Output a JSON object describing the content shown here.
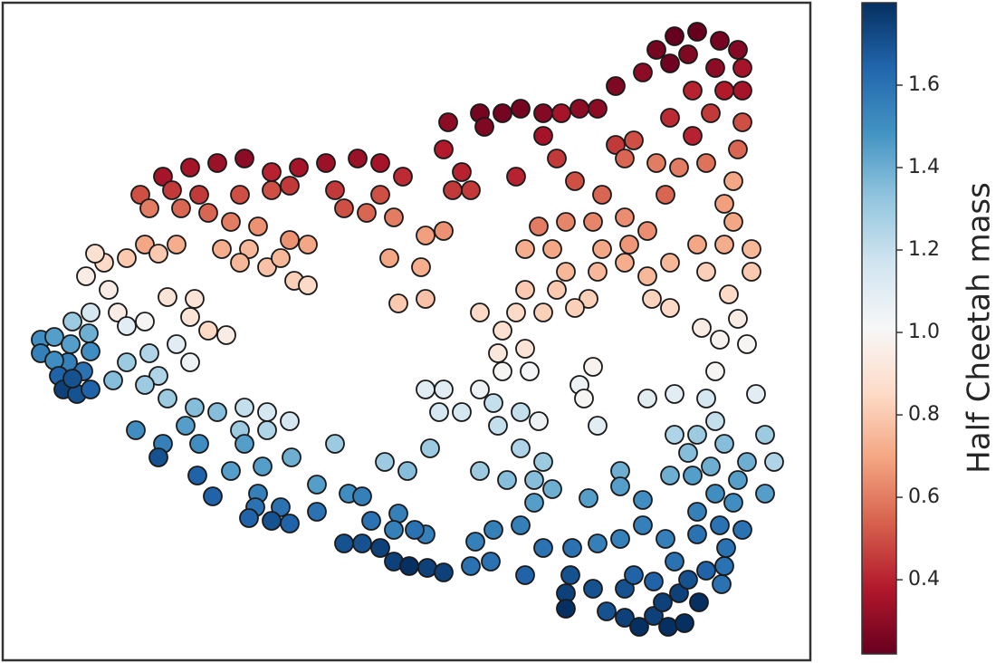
{
  "chart_data": {
    "type": "scatter",
    "x": [
      7.45,
      7.7,
      7.95,
      8.15,
      7.25,
      7.6,
      7.9,
      8.2,
      7.4,
      7.1,
      6.8,
      8.2,
      7.65,
      8.0,
      7.4,
      7.85,
      8.2,
      6.4,
      6.0,
      5.75,
      5.55,
      5.3,
      4.95,
      5.35,
      6.6,
      6.2,
      6.0,
      6.8,
      7.0,
      6.9,
      7.25,
      7.5,
      7.8,
      8.15,
      8.1,
      7.65,
      7.35,
      6.65,
      6.35,
      6.15,
      5.7,
      5.1,
      5.0,
      4.9,
      4.2,
      4.45,
      4.2,
      3.95,
      3.6,
      3.3,
      3.0,
      2.7,
      2.4,
      2.1,
      1.8,
      1.9,
      1.55,
      1.65,
      2.2,
      2.65,
      3.0,
      3.2,
      3.7,
      3.8,
      4.05,
      4.35,
      4.7,
      4.9,
      4.65,
      4.3,
      4.4,
      4.7,
      5.2,
      2.0,
      2.3,
      2.55,
      2.85,
      3.2,
      3.4,
      1.6,
      1.95,
      2.45,
      2.75,
      2.65,
      2.95,
      3.1,
      3.25,
      3.4,
      1.4,
      1.15,
      1.05,
      1.75,
      5.95,
      6.25,
      6.55,
      6.9,
      7.15,
      6.95,
      6.65,
      6.1,
      5.8,
      6.25,
      6.6,
      6.9,
      7.15,
      7.4,
      7.7,
      8.0,
      8.3,
      8.1,
      8.0,
      8.3,
      7.8,
      8.05,
      7.4,
      7.2,
      6.5,
      6.15,
      5.8,
      6.0,
      5.7,
      5.3,
      6.35,
      5.55,
      5.5,
      5.8,
      8.15,
      7.95,
      8.25,
      7.75,
      2.3,
      2.5,
      2.1,
      1.85,
      2.15,
      1.3,
      1.6,
      1.2,
      0.95,
      1.0,
      0.8,
      1.4,
      1.95,
      2.1,
      1.65,
      1.4,
      1.75,
      1.6,
      1.85,
      2.15,
      2.4,
      2.7,
      2.95,
      3.2,
      2.95,
      2.65,
      5.55,
      5.85,
      5.3,
      4.7,
      4.9,
      5.1,
      5.45,
      5.75,
      5.95,
      6.4,
      6.55,
      6.45,
      6.6,
      7.15,
      7.45,
      7.8,
      7.9,
      8.35,
      4.85,
      5.5,
      7.9,
      7.45,
      7.7,
      8.0,
      8.45,
      8.55,
      7.6,
      1.25,
      2.05,
      1.5,
      1.8,
      2.2,
      2.7,
      2.55,
      2.9,
      3.22,
      3.5,
      3.7,
      3.85,
      4.0,
      4.25,
      4.5,
      4.75,
      5.3,
      5.75,
      6.0,
      5.6,
      5.9,
      6.1,
      6.5,
      6.85,
      6.85,
      7.1,
      7.4,
      7.65,
      7.85,
      8.15,
      8.25,
      8.45,
      7.9,
      8.1,
      7.7,
      7.95,
      8.2,
      7.7,
      7.35,
      7.1,
      6.85,
      6.6,
      5.9,
      5.75,
      5.45,
      5.25,
      4.7,
      4.4,
      4.35,
      4.58,
      4.1,
      6.0,
      6.32,
      2.85,
      2.82,
      3.1,
      3.2,
      3.0,
      2.75,
      3.5,
      2.35,
      2.18,
      1.75,
      0.45,
      0.45,
      0.6,
      0.78,
      0.98,
      1.0,
      0.92,
      0.75,
      0.6,
      0.65,
      0.7,
      0.85,
      1.0,
      0.8,
      3.8,
      4.0,
      4.2,
      4.35,
      4.52,
      4.72,
      4.9,
      5.2,
      5.42,
      5.8,
      6.3,
      6.55,
      6.25,
      6.25,
      6.7,
      6.9,
      7.06,
      7.22,
      7.38,
      7.56,
      7.32,
      7.5,
      7.72,
      7.6,
      7.8,
      8.0,
      7.97,
      6.9,
      7.0,
      7.22,
      7.45,
      8.02
    ],
    "values": [
      6.9,
      6.95,
      6.85,
      6.75,
      6.75,
      6.7,
      6.55,
      6.55,
      6.6,
      6.5,
      6.35,
      6.3,
      6.3,
      6.3,
      6.0,
      6.05,
      5.95,
      6.1,
      6.05,
      6.1,
      6.05,
      6.05,
      5.95,
      5.9,
      6.1,
      6.05,
      5.8,
      5.7,
      5.75,
      5.55,
      5.5,
      5.45,
      5.5,
      5.65,
      5.3,
      5.8,
      5.15,
      5.15,
      5.3,
      5.55,
      5.35,
      5.4,
      5.2,
      5.65,
      5.5,
      5.35,
      5.15,
      5.55,
      5.5,
      5.45,
      5.4,
      5.55,
      5.5,
      5.45,
      5.35,
      5.2,
      5.15,
      5.0,
      5.15,
      5.15,
      5.2,
      5.25,
      5.2,
      5.0,
      4.95,
      4.9,
      4.7,
      4.75,
      4.35,
      4.45,
      3.95,
      4.0,
      5.2,
      5.0,
      4.95,
      4.85,
      4.8,
      4.65,
      4.6,
      4.6,
      4.6,
      4.55,
      4.55,
      4.4,
      4.35,
      4.45,
      4.2,
      4.15,
      4.45,
      4.4,
      4.5,
      4.5,
      4.8,
      4.85,
      4.85,
      4.9,
      4.75,
      4.6,
      4.55,
      4.55,
      4.55,
      4.3,
      4.3,
      4.4,
      4.25,
      4.4,
      4.6,
      4.6,
      4.55,
      4.85,
      5.05,
      4.3,
      4.3,
      4.05,
      3.9,
      4.0,
      4.0,
      4.1,
      4.1,
      3.85,
      3.85,
      3.85,
      3.9,
      3.65,
      3.4,
      3.45,
      3.78,
      3.55,
      3.5,
      3.68,
      3.65,
      3.6,
      3.8,
      4.02,
      4.0,
      3.85,
      3.75,
      4.1,
      4.25,
      3.85,
      3.75,
      3.7,
      3.5,
      3.3,
      3.4,
      3.3,
      3.15,
      3.05,
      2.9,
      2.8,
      2.75,
      2.8,
      2.75,
      2.65,
      2.55,
      2.55,
      3.2,
      3.2,
      3.0,
      3.0,
      3.0,
      2.75,
      2.85,
      2.75,
      2.65,
      3.05,
      3.25,
      2.9,
      2.6,
      2.9,
      2.95,
      2.9,
      3.2,
      2.95,
      2.75,
      2.6,
      2.65,
      2.5,
      2.5,
      2.4,
      2.5,
      2.2,
      2.3,
      3.1,
      2.6,
      2.55,
      2.4,
      2.4,
      2.4,
      2.1,
      2.15,
      2.25,
      1.95,
      2.4,
      1.85,
      1.82,
      2.2,
      2.1,
      2.35,
      2.1,
      2.35,
      2.2,
      2.0,
      2.0,
      1.9,
      1.8,
      2.1,
      1.93,
      1.78,
      2.05,
      2.05,
      2.15,
      2.0,
      2.2,
      1.85,
      1.85,
      1.75,
      1.65,
      1.5,
      1.45,
      1.4,
      1.35,
      1.5,
      1.35,
      1.3,
      1.75,
      1.5,
      1.45,
      1.32,
      1.4,
      1.63,
      1.45,
      1.45,
      1.55,
      1.25,
      1.25,
      1.85,
      1.7,
      1.7,
      1.52,
      1.55,
      1.58,
      1.65,
      1.82,
      2.05,
      2.25,
      3.55,
      3.4,
      3.58,
      3.5,
      3.62,
      3.42,
      3.2,
      3.3,
      3.32,
      3.15,
      3.0,
      2.95,
      3.0,
      3.12,
      1.3,
      1.3,
      1.25,
      1.1,
      1.05,
      1.03,
      0.98,
      1.05,
      1.1,
      0.95,
      0.95,
      0.8,
      0.75,
      0.58,
      0.55,
      0.48,
      0.38,
      0.5,
      0.38,
      0.42,
      0.65,
      0.75,
      0.65,
      0.9,
      1.0,
      1.05,
      0.85,
      0.8,
      0.95,
      0.88,
      1.1,
      1.25
    ],
    "c": [
      0.22,
      0.22,
      0.25,
      0.28,
      0.25,
      0.27,
      0.3,
      0.35,
      0.24,
      0.3,
      0.27,
      0.35,
      0.4,
      0.38,
      0.42,
      0.45,
      0.5,
      0.3,
      0.28,
      0.25,
      0.25,
      0.25,
      0.3,
      0.27,
      0.3,
      0.35,
      0.35,
      0.45,
      0.5,
      0.55,
      0.6,
      0.6,
      0.58,
      0.55,
      0.7,
      0.4,
      0.55,
      0.55,
      0.5,
      0.45,
      0.4,
      0.4,
      0.45,
      0.38,
      0.35,
      0.42,
      0.5,
      0.33,
      0.33,
      0.35,
      0.4,
      0.3,
      0.33,
      0.35,
      0.35,
      0.45,
      0.5,
      0.6,
      0.45,
      0.5,
      0.5,
      0.45,
      0.45,
      0.5,
      0.55,
      0.6,
      0.68,
      0.65,
      0.72,
      0.7,
      0.8,
      0.78,
      0.45,
      0.55,
      0.55,
      0.6,
      0.65,
      0.65,
      0.7,
      0.7,
      0.72,
      0.72,
      0.75,
      0.75,
      0.78,
      0.75,
      0.82,
      0.85,
      0.8,
      0.85,
      0.88,
      0.8,
      0.6,
      0.62,
      0.62,
      0.64,
      0.64,
      0.66,
      0.7,
      0.7,
      0.72,
      0.75,
      0.75,
      0.72,
      0.75,
      0.75,
      0.7,
      0.72,
      0.75,
      0.7,
      0.68,
      0.8,
      0.82,
      0.85,
      0.85,
      0.83,
      0.82,
      0.8,
      0.8,
      0.82,
      0.85,
      0.85,
      0.82,
      0.88,
      0.92,
      0.9,
      0.95,
      0.98,
      1.0,
      0.95,
      0.85,
      0.95,
      0.9,
      0.9,
      0.9,
      0.95,
      1.0,
      0.95,
      0.95,
      1.15,
      1.3,
      1.1,
      1.1,
      1.05,
      1.25,
      1.3,
      1.25,
      1.3,
      1.3,
      1.35,
      1.35,
      1.2,
      1.15,
      1.15,
      1.25,
      1.3,
      1.0,
      1.02,
      1.05,
      1.1,
      1.1,
      1.15,
      1.2,
      1.2,
      1.05,
      1.05,
      0.98,
      1.0,
      1.1,
      1.1,
      1.1,
      1.15,
      1.0,
      1.1,
      1.15,
      1.2,
      1.2,
      1.25,
      1.3,
      1.35,
      1.3,
      1.25,
      1.35,
      1.35,
      1.45,
      1.5,
      1.55,
      1.5,
      1.45,
      1.45,
      1.45,
      1.4,
      1.45,
      1.3,
      1.5,
      1.55,
      1.3,
      1.35,
      1.3,
      1.3,
      1.25,
      1.3,
      1.35,
      1.35,
      1.4,
      1.45,
      1.4,
      1.45,
      1.5,
      1.4,
      1.45,
      1.4,
      1.45,
      1.4,
      1.45,
      1.5,
      1.5,
      1.55,
      1.6,
      1.6,
      1.6,
      1.55,
      1.55,
      1.55,
      1.55,
      1.45,
      1.55,
      1.55,
      1.55,
      1.55,
      1.55,
      1.55,
      1.6,
      1.6,
      1.6,
      1.6,
      1.55,
      1.6,
      1.6,
      1.65,
      1.7,
      1.65,
      1.6,
      1.65,
      1.65,
      1.7,
      1.5,
      1.55,
      1.45,
      1.45,
      1.4,
      1.5,
      1.6,
      1.55,
      1.5,
      1.65,
      1.75,
      1.7,
      1.65,
      1.7,
      1.7,
      1.7,
      1.75,
      1.75,
      1.8,
      1.75,
      1.75,
      1.6,
      1.6,
      1.65,
      1.7,
      1.7,
      1.75,
      1.8,
      1.7,
      1.75,
      1.8,
      1.75,
      1.8,
      1.8,
      1.75,
      1.75,
      1.8,
      1.7,
      1.65,
      1.6,
      1.6,
      1.7,
      1.65,
      1.65,
      1.6,
      1.6
    ],
    "xlim": [
      0.03,
      8.95
    ],
    "ylim": [
      0.01,
      7.27
    ],
    "colormap": "RdBu",
    "colorbar": {
      "label": "Half Cheetah mass",
      "clim": [
        0.22,
        1.8
      ],
      "ticks": [
        0.4,
        0.6,
        0.8,
        {
          "value": 1,
          "label": "1.0"
        },
        1.2,
        1.4,
        1.6
      ]
    }
  }
}
